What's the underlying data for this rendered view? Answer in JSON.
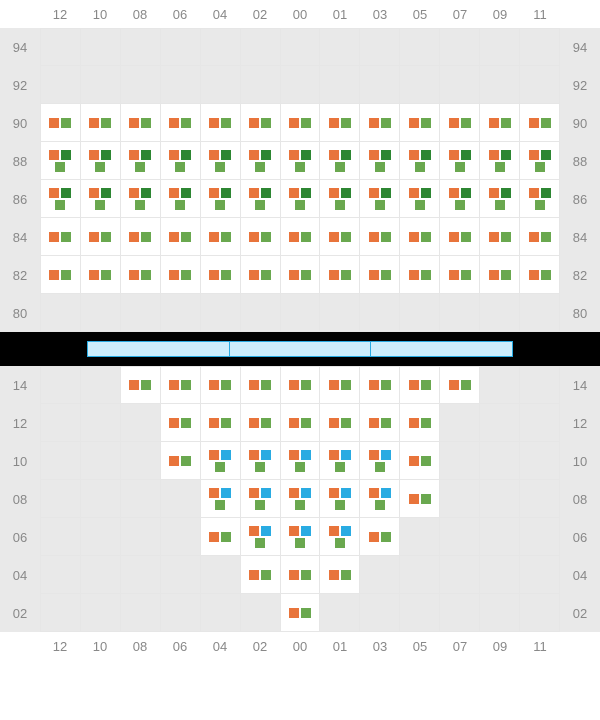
{
  "colors": {
    "grid_bg": "#e9e9e9",
    "cell_active_bg": "#ffffff",
    "cell_border": "#e6e6e6",
    "label": "#888888",
    "divider_bg": "#000000",
    "divider_seg_bg": "#cdeefc",
    "divider_seg_border": "#29abe2",
    "dot_orange": "#e8743b",
    "dot_green": "#6aa84f",
    "dot_darkgreen": "#2d8632",
    "dot_blue": "#29abe2"
  },
  "columns": [
    "12",
    "10",
    "08",
    "06",
    "04",
    "02",
    "00",
    "01",
    "03",
    "05",
    "07",
    "09",
    "11"
  ],
  "divider_segments": 3,
  "sections": [
    {
      "id": "upper",
      "show_top_labels": true,
      "show_bottom_labels": false,
      "rows": [
        {
          "label": "94",
          "cells": [
            [],
            [],
            [],
            [],
            [],
            [],
            [],
            [],
            [],
            [],
            [],
            [],
            []
          ]
        },
        {
          "label": "92",
          "cells": [
            [],
            [],
            [],
            [],
            [],
            [],
            [],
            [],
            [],
            [],
            [],
            [],
            []
          ]
        },
        {
          "label": "90",
          "cells": [
            [
              "o",
              "g"
            ],
            [
              "o",
              "g"
            ],
            [
              "o",
              "g"
            ],
            [
              "o",
              "g"
            ],
            [
              "o",
              "g"
            ],
            [
              "o",
              "g"
            ],
            [
              "o",
              "g"
            ],
            [
              "o",
              "g"
            ],
            [
              "o",
              "g"
            ],
            [
              "o",
              "g"
            ],
            [
              "o",
              "g"
            ],
            [
              "o",
              "g"
            ],
            [
              "o",
              "g"
            ]
          ]
        },
        {
          "label": "88",
          "cells": [
            [
              "o",
              "d",
              "g"
            ],
            [
              "o",
              "d",
              "g"
            ],
            [
              "o",
              "d",
              "g"
            ],
            [
              "o",
              "d",
              "g"
            ],
            [
              "o",
              "d",
              "g"
            ],
            [
              "o",
              "d",
              "g"
            ],
            [
              "o",
              "d",
              "g"
            ],
            [
              "o",
              "d",
              "g"
            ],
            [
              "o",
              "d",
              "g"
            ],
            [
              "o",
              "d",
              "g"
            ],
            [
              "o",
              "d",
              "g"
            ],
            [
              "o",
              "d",
              "g"
            ],
            [
              "o",
              "d",
              "g"
            ]
          ]
        },
        {
          "label": "86",
          "cells": [
            [
              "o",
              "d",
              "g"
            ],
            [
              "o",
              "d",
              "g"
            ],
            [
              "o",
              "d",
              "g"
            ],
            [
              "o",
              "d",
              "g"
            ],
            [
              "o",
              "d",
              "g"
            ],
            [
              "o",
              "d",
              "g"
            ],
            [
              "o",
              "d",
              "g"
            ],
            [
              "o",
              "d",
              "g"
            ],
            [
              "o",
              "d",
              "g"
            ],
            [
              "o",
              "d",
              "g"
            ],
            [
              "o",
              "d",
              "g"
            ],
            [
              "o",
              "d",
              "g"
            ],
            [
              "o",
              "d",
              "g"
            ]
          ]
        },
        {
          "label": "84",
          "cells": [
            [
              "o",
              "g"
            ],
            [
              "o",
              "g"
            ],
            [
              "o",
              "g"
            ],
            [
              "o",
              "g"
            ],
            [
              "o",
              "g"
            ],
            [
              "o",
              "g"
            ],
            [
              "o",
              "g"
            ],
            [
              "o",
              "g"
            ],
            [
              "o",
              "g"
            ],
            [
              "o",
              "g"
            ],
            [
              "o",
              "g"
            ],
            [
              "o",
              "g"
            ],
            [
              "o",
              "g"
            ]
          ]
        },
        {
          "label": "82",
          "cells": [
            [
              "o",
              "g"
            ],
            [
              "o",
              "g"
            ],
            [
              "o",
              "g"
            ],
            [
              "o",
              "g"
            ],
            [
              "o",
              "g"
            ],
            [
              "o",
              "g"
            ],
            [
              "o",
              "g"
            ],
            [
              "o",
              "g"
            ],
            [
              "o",
              "g"
            ],
            [
              "o",
              "g"
            ],
            [
              "o",
              "g"
            ],
            [
              "o",
              "g"
            ],
            [
              "o",
              "g"
            ]
          ]
        },
        {
          "label": "80",
          "cells": [
            [],
            [],
            [],
            [],
            [],
            [],
            [],
            [],
            [],
            [],
            [],
            [],
            []
          ]
        }
      ]
    },
    {
      "id": "lower",
      "show_top_labels": false,
      "show_bottom_labels": true,
      "rows": [
        {
          "label": "14",
          "cells": [
            null,
            null,
            [
              "o",
              "g"
            ],
            [
              "o",
              "g"
            ],
            [
              "o",
              "g"
            ],
            [
              "o",
              "g"
            ],
            [
              "o",
              "g"
            ],
            [
              "o",
              "g"
            ],
            [
              "o",
              "g"
            ],
            [
              "o",
              "g"
            ],
            [
              "o",
              "g"
            ],
            null,
            null
          ]
        },
        {
          "label": "12",
          "cells": [
            null,
            null,
            null,
            [
              "o",
              "g"
            ],
            [
              "o",
              "g"
            ],
            [
              "o",
              "g"
            ],
            [
              "o",
              "g"
            ],
            [
              "o",
              "g"
            ],
            [
              "o",
              "g"
            ],
            [
              "o",
              "g"
            ],
            null,
            null,
            null
          ]
        },
        {
          "label": "10",
          "cells": [
            null,
            null,
            null,
            [
              "o",
              "g"
            ],
            [
              "o",
              "b",
              "g"
            ],
            [
              "o",
              "b",
              "g"
            ],
            [
              "o",
              "b",
              "g"
            ],
            [
              "o",
              "b",
              "g"
            ],
            [
              "o",
              "b",
              "g"
            ],
            [
              "o",
              "g"
            ],
            null,
            null,
            null
          ]
        },
        {
          "label": "08",
          "cells": [
            null,
            null,
            null,
            null,
            [
              "o",
              "b",
              "g"
            ],
            [
              "o",
              "b",
              "g"
            ],
            [
              "o",
              "b",
              "g"
            ],
            [
              "o",
              "b",
              "g"
            ],
            [
              "o",
              "b",
              "g"
            ],
            [
              "o",
              "g"
            ],
            null,
            null,
            null
          ]
        },
        {
          "label": "06",
          "cells": [
            null,
            null,
            null,
            null,
            [
              "o",
              "g"
            ],
            [
              "o",
              "b",
              "g"
            ],
            [
              "o",
              "b",
              "g"
            ],
            [
              "o",
              "b",
              "g"
            ],
            [
              "o",
              "g"
            ],
            null,
            null,
            null,
            null
          ]
        },
        {
          "label": "04",
          "cells": [
            null,
            null,
            null,
            null,
            null,
            [
              "o",
              "g"
            ],
            [
              "o",
              "g"
            ],
            [
              "o",
              "g"
            ],
            null,
            null,
            null,
            null,
            null
          ]
        },
        {
          "label": "02",
          "cells": [
            null,
            null,
            null,
            null,
            null,
            null,
            [
              "o",
              "g"
            ],
            null,
            null,
            null,
            null,
            null,
            null
          ]
        }
      ]
    }
  ]
}
